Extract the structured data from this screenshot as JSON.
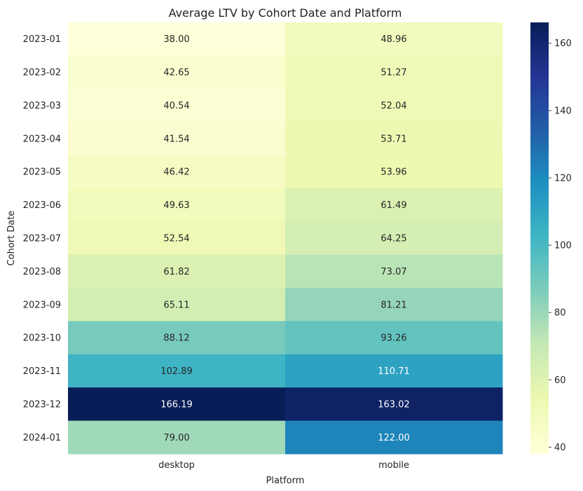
{
  "chart_data": {
    "type": "heatmap",
    "title": "Average LTV by Cohort Date and Platform",
    "xlabel": "Platform",
    "ylabel": "Cohort Date",
    "x_categories": [
      "desktop",
      "mobile"
    ],
    "y_categories": [
      "2023-01",
      "2023-02",
      "2023-03",
      "2023-04",
      "2023-05",
      "2023-06",
      "2023-07",
      "2023-08",
      "2023-09",
      "2023-10",
      "2023-11",
      "2023-12",
      "2024-01"
    ],
    "values": [
      [
        38.0,
        48.96
      ],
      [
        42.65,
        51.27
      ],
      [
        40.54,
        52.04
      ],
      [
        41.54,
        53.71
      ],
      [
        46.42,
        53.96
      ],
      [
        49.63,
        61.49
      ],
      [
        52.54,
        64.25
      ],
      [
        61.82,
        73.07
      ],
      [
        65.11,
        81.21
      ],
      [
        88.12,
        93.26
      ],
      [
        102.89,
        110.71
      ],
      [
        166.19,
        163.02
      ],
      [
        79.0,
        122.0
      ]
    ],
    "labels": [
      [
        "38.00",
        "48.96"
      ],
      [
        "42.65",
        "51.27"
      ],
      [
        "40.54",
        "52.04"
      ],
      [
        "41.54",
        "53.71"
      ],
      [
        "46.42",
        "53.96"
      ],
      [
        "49.63",
        "61.49"
      ],
      [
        "52.54",
        "64.25"
      ],
      [
        "61.82",
        "73.07"
      ],
      [
        "65.11",
        "81.21"
      ],
      [
        "88.12",
        "93.26"
      ],
      [
        "102.89",
        "110.71"
      ],
      [
        "166.19",
        "163.02"
      ],
      [
        "79.00",
        "122.00"
      ]
    ],
    "colormap": "YlGnBu",
    "colorbar": {
      "range": [
        38.0,
        166.19
      ],
      "ticks": [
        40,
        60,
        80,
        100,
        120,
        140,
        160
      ],
      "tick_labels": [
        "40",
        "60",
        "80",
        "100",
        "120",
        "140",
        "160"
      ]
    },
    "colormap_stops": [
      "#ffffd9",
      "#edf8b1",
      "#c7e9b4",
      "#7fcdbb",
      "#41b6c4",
      "#1d91c0",
      "#225ea8",
      "#253494",
      "#081d58"
    ]
  }
}
